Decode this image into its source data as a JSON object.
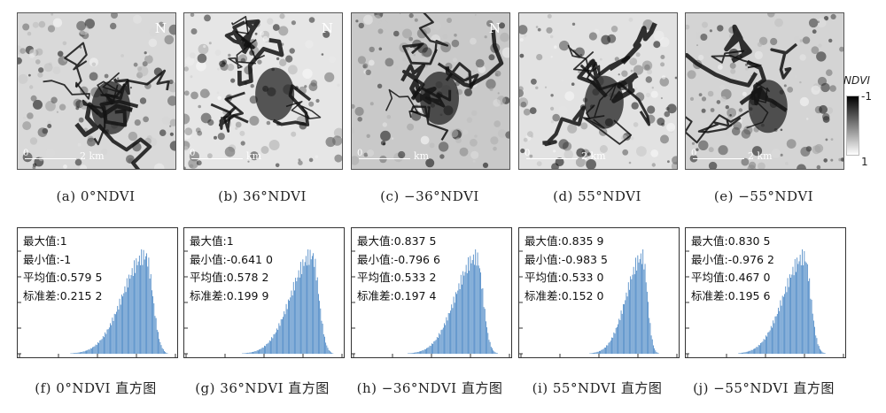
{
  "panels": [
    {
      "caption": "(a) 0°NDVI",
      "scale_label": "2 km",
      "north": "N",
      "variant": 0
    },
    {
      "caption": "(b) 36°NDVI",
      "scale_label": "km",
      "north": "N",
      "variant": 1
    },
    {
      "caption": "(c) −36°NDVI",
      "scale_label": "km",
      "north": "N",
      "variant": 2
    },
    {
      "caption": "(d) 55°NDVI",
      "scale_label": "2 km",
      "north": "",
      "variant": 3
    },
    {
      "caption": "(e) −55°NDVI",
      "scale_label": "2 km",
      "north": "",
      "variant": 4
    }
  ],
  "scale_zero": "0",
  "legend": {
    "title": "NDVI",
    "top_label": "-1",
    "bottom_label": "1",
    "colors": {
      "top": "#000000",
      "bottom": "#ffffff"
    }
  },
  "histograms": [
    {
      "caption": "(f) 0°NDVI 直方图",
      "max": "最大值:1",
      "min": "最小值:-1",
      "mean": "平均值:0.579 5",
      "std": "标准差:0.215 2"
    },
    {
      "caption": "(g) 36°NDVI 直方图",
      "max": "最大值:1",
      "min": "最小值:-0.641 0",
      "mean": "平均值:0.578 2",
      "std": "标准差:0.199 9"
    },
    {
      "caption": "(h) −36°NDVI 直方图",
      "max": "最大值:0.837 5",
      "min": "最小值:-0.796 6",
      "mean": "平均值:0.533 2",
      "std": "标准差:0.197 4"
    },
    {
      "caption": "(i) 55°NDVI 直方图",
      "max": "最大值:0.835 9",
      "min": "最小值:-0.983 5",
      "mean": "平均值:0.533 0",
      "std": "标准差:0.152 0"
    },
    {
      "caption": "(j) −55°NDVI 直方图",
      "max": "最大值:0.830 5",
      "min": "最小值:-0.976 2",
      "mean": "平均值:0.467 0",
      "std": "标准差:0.195 6"
    }
  ],
  "chart_data": [
    {
      "type": "bar",
      "name": "(f) 0°NDVI 直方图",
      "xlim": [
        -1,
        1
      ],
      "mean": 0.5795,
      "std": 0.2152,
      "peak": 0.62,
      "colors": {
        "bars": "#4a87c5"
      }
    },
    {
      "type": "bar",
      "name": "(g) 36°NDVI 直方图",
      "xlim": [
        -1,
        1
      ],
      "mean": 0.5782,
      "std": 0.1999,
      "peak": 0.62,
      "colors": {
        "bars": "#4a87c5"
      }
    },
    {
      "type": "bar",
      "name": "(h) −36°NDVI 直方图",
      "xlim": [
        -1,
        1
      ],
      "mean": 0.5332,
      "std": 0.1974,
      "peak": 0.58,
      "colors": {
        "bars": "#4a87c5"
      }
    },
    {
      "type": "bar",
      "name": "(i) 55°NDVI 直方图",
      "xlim": [
        -1,
        1
      ],
      "mean": 0.533,
      "std": 0.152,
      "peak": 0.56,
      "colors": {
        "bars": "#4a87c5"
      }
    },
    {
      "type": "bar",
      "name": "(j) −55°NDVI 直方图",
      "xlim": [
        -1,
        1
      ],
      "mean": 0.467,
      "std": 0.1956,
      "peak": 0.5,
      "colors": {
        "bars": "#4a87c5"
      }
    }
  ]
}
